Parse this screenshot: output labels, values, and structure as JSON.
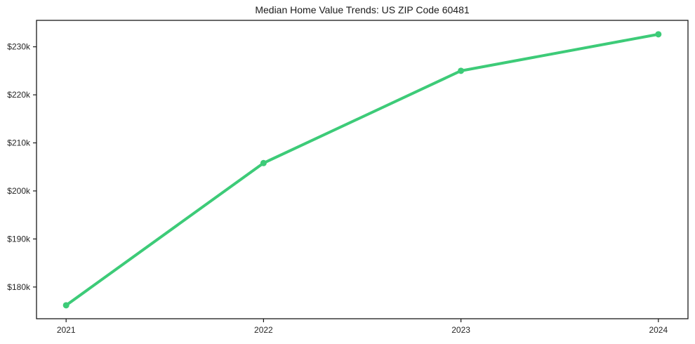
{
  "chart_data": {
    "type": "line",
    "title": "Median Home Value Trends: US ZIP Code 60481",
    "x": [
      2021,
      2022,
      2023,
      2024
    ],
    "xticklabels": [
      "2021",
      "2022",
      "2023",
      "2024"
    ],
    "series": [
      {
        "name": "Median Home Value",
        "values": [
          176200,
          205800,
          225000,
          232600
        ]
      }
    ],
    "yticks": [
      180000,
      190000,
      200000,
      210000,
      220000,
      230000
    ],
    "yticklabels": [
      "$180k",
      "$190k",
      "$200k",
      "$210k",
      "$220k",
      "$230k"
    ],
    "xlim": [
      2020.85,
      2024.15
    ],
    "ylim": [
      173400,
      235500
    ],
    "grid": false,
    "legend": "none",
    "line_color": "#3dcb78",
    "marker": "circle",
    "axis_color": "#1a1a1a",
    "background_color": "#ffffff"
  }
}
